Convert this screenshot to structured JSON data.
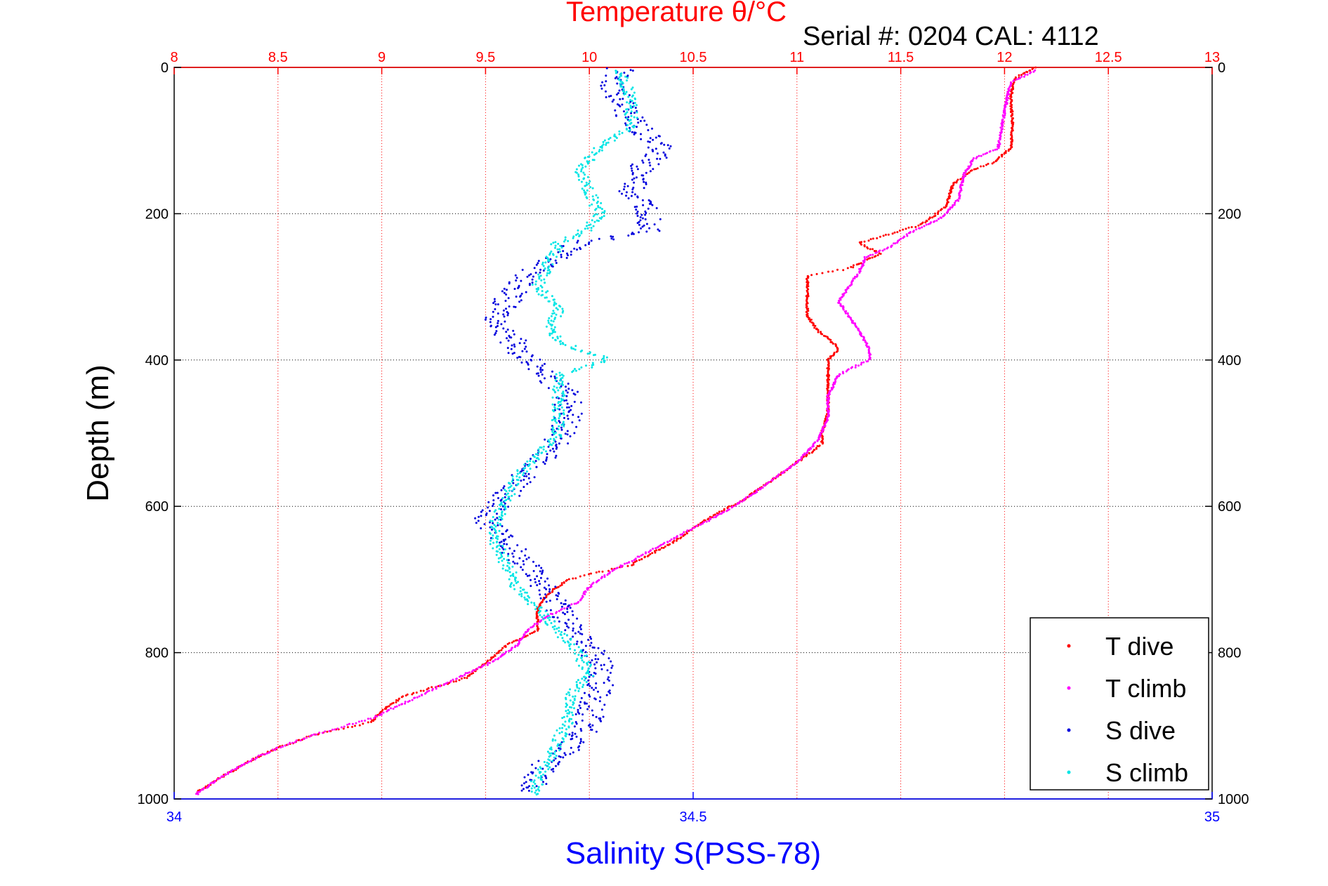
{
  "chart_data": {
    "type": "scatter",
    "title": "Temperature θ/°C",
    "subtitle": "Serial #: 0204  CAL: 4112",
    "ylabel": "Depth (m)",
    "xlabel_bottom": "Salinity S(PSS-78)",
    "temperature_axis": {
      "range": [
        8,
        13
      ],
      "ticks": [
        "8",
        "8.5",
        "9",
        "9.5",
        "10",
        "10.5",
        "11",
        "11.5",
        "12",
        "12.5",
        "13"
      ],
      "color": "#ff0000"
    },
    "salinity_axis": {
      "range": [
        34,
        35
      ],
      "ticks": [
        "34",
        "34.5",
        "35"
      ],
      "color": "#0000ff"
    },
    "depth_axis": {
      "range": [
        0,
        1000
      ],
      "reversed": true,
      "ticks": [
        "0",
        "200",
        "400",
        "600",
        "800",
        "1000"
      ]
    },
    "grid": true,
    "legend_position": "bottom-right",
    "colors": {
      "t_dive": "#ff0000",
      "t_climb": "#ff00ff",
      "s_dive": "#0000dd",
      "s_climb": "#00e5e5"
    },
    "series": [
      {
        "name": "T dive",
        "key": "t_dive",
        "axis": "temperature",
        "points": [
          [
            12.15,
            0
          ],
          [
            12.05,
            15
          ],
          [
            12.03,
            40
          ],
          [
            12.04,
            80
          ],
          [
            12.03,
            110
          ],
          [
            11.95,
            130
          ],
          [
            11.85,
            140
          ],
          [
            11.75,
            160
          ],
          [
            11.72,
            190
          ],
          [
            11.6,
            215
          ],
          [
            11.3,
            240
          ],
          [
            11.4,
            255
          ],
          [
            11.25,
            275
          ],
          [
            11.05,
            285
          ],
          [
            11.05,
            300
          ],
          [
            11.05,
            340
          ],
          [
            11.1,
            360
          ],
          [
            11.15,
            370
          ],
          [
            11.2,
            385
          ],
          [
            11.15,
            400
          ],
          [
            11.15,
            430
          ],
          [
            11.15,
            470
          ],
          [
            11.12,
            500
          ],
          [
            11.12,
            515
          ],
          [
            11.0,
            540
          ],
          [
            10.9,
            560
          ],
          [
            10.75,
            590
          ],
          [
            10.55,
            620
          ],
          [
            10.4,
            650
          ],
          [
            10.2,
            680
          ],
          [
            10.05,
            690
          ],
          [
            9.9,
            700
          ],
          [
            9.8,
            720
          ],
          [
            9.75,
            740
          ],
          [
            9.75,
            770
          ],
          [
            9.6,
            790
          ],
          [
            9.5,
            815
          ],
          [
            9.4,
            835
          ],
          [
            9.1,
            860
          ],
          [
            9.0,
            880
          ],
          [
            8.95,
            895
          ],
          [
            8.7,
            910
          ],
          [
            8.5,
            930
          ],
          [
            8.35,
            950
          ],
          [
            8.2,
            975
          ],
          [
            8.1,
            993
          ]
        ]
      },
      {
        "name": "T climb",
        "key": "t_climb",
        "axis": "temperature",
        "points": [
          [
            12.15,
            5
          ],
          [
            12.03,
            20
          ],
          [
            12.0,
            60
          ],
          [
            11.97,
            110
          ],
          [
            11.85,
            125
          ],
          [
            11.8,
            150
          ],
          [
            11.78,
            180
          ],
          [
            11.7,
            205
          ],
          [
            11.55,
            225
          ],
          [
            11.45,
            245
          ],
          [
            11.33,
            260
          ],
          [
            11.3,
            280
          ],
          [
            11.25,
            300
          ],
          [
            11.2,
            320
          ],
          [
            11.25,
            340
          ],
          [
            11.3,
            360
          ],
          [
            11.35,
            385
          ],
          [
            11.35,
            400
          ],
          [
            11.2,
            420
          ],
          [
            11.15,
            450
          ],
          [
            11.15,
            480
          ],
          [
            11.1,
            510
          ],
          [
            11.0,
            540
          ],
          [
            10.85,
            570
          ],
          [
            10.7,
            600
          ],
          [
            10.5,
            630
          ],
          [
            10.3,
            660
          ],
          [
            10.1,
            690
          ],
          [
            10.0,
            710
          ],
          [
            9.95,
            730
          ],
          [
            9.8,
            750
          ],
          [
            9.7,
            770
          ],
          [
            9.65,
            790
          ],
          [
            9.55,
            810
          ],
          [
            9.4,
            830
          ],
          [
            9.25,
            850
          ],
          [
            9.1,
            870
          ],
          [
            8.95,
            890
          ],
          [
            8.7,
            910
          ],
          [
            8.5,
            930
          ],
          [
            8.35,
            950
          ],
          [
            8.2,
            975
          ],
          [
            8.1,
            995
          ]
        ]
      },
      {
        "name": "S dive",
        "key": "s_dive",
        "axis": "salinity",
        "points": [
          [
            34.43,
            2
          ],
          [
            34.42,
            20
          ],
          [
            34.43,
            50
          ],
          [
            34.45,
            90
          ],
          [
            34.47,
            110
          ],
          [
            34.45,
            140
          ],
          [
            34.44,
            170
          ],
          [
            34.46,
            200
          ],
          [
            34.46,
            225
          ],
          [
            34.39,
            240
          ],
          [
            34.37,
            260
          ],
          [
            34.35,
            275
          ],
          [
            34.33,
            300
          ],
          [
            34.32,
            320
          ],
          [
            34.31,
            350
          ],
          [
            34.33,
            380
          ],
          [
            34.34,
            400
          ],
          [
            34.36,
            420
          ],
          [
            34.38,
            450
          ],
          [
            34.38,
            480
          ],
          [
            34.37,
            510
          ],
          [
            34.35,
            540
          ],
          [
            34.33,
            570
          ],
          [
            34.31,
            600
          ],
          [
            34.3,
            620
          ],
          [
            34.32,
            650
          ],
          [
            34.34,
            680
          ],
          [
            34.35,
            700
          ],
          [
            34.36,
            720
          ],
          [
            34.37,
            740
          ],
          [
            34.38,
            760
          ],
          [
            34.4,
            790
          ],
          [
            34.41,
            820
          ],
          [
            34.41,
            850
          ],
          [
            34.4,
            880
          ],
          [
            34.4,
            900
          ],
          [
            34.38,
            930
          ],
          [
            34.36,
            950
          ],
          [
            34.35,
            970
          ],
          [
            34.34,
            990
          ]
        ]
      },
      {
        "name": "S climb",
        "key": "s_climb",
        "axis": "salinity",
        "points": [
          [
            34.43,
            5
          ],
          [
            34.44,
            40
          ],
          [
            34.44,
            80
          ],
          [
            34.41,
            110
          ],
          [
            34.39,
            140
          ],
          [
            34.4,
            170
          ],
          [
            34.41,
            200
          ],
          [
            34.4,
            220
          ],
          [
            34.37,
            240
          ],
          [
            34.36,
            270
          ],
          [
            34.35,
            300
          ],
          [
            34.37,
            330
          ],
          [
            34.36,
            360
          ],
          [
            34.38,
            380
          ],
          [
            34.42,
            400
          ],
          [
            34.37,
            420
          ],
          [
            34.37,
            460
          ],
          [
            34.37,
            500
          ],
          [
            34.35,
            530
          ],
          [
            34.33,
            560
          ],
          [
            34.32,
            590
          ],
          [
            34.31,
            620
          ],
          [
            34.31,
            650
          ],
          [
            34.32,
            680
          ],
          [
            34.33,
            710
          ],
          [
            34.35,
            740
          ],
          [
            34.37,
            770
          ],
          [
            34.39,
            800
          ],
          [
            34.4,
            830
          ],
          [
            34.38,
            860
          ],
          [
            34.38,
            890
          ],
          [
            34.37,
            920
          ],
          [
            34.36,
            950
          ],
          [
            34.35,
            975
          ],
          [
            34.35,
            995
          ]
        ]
      }
    ]
  }
}
